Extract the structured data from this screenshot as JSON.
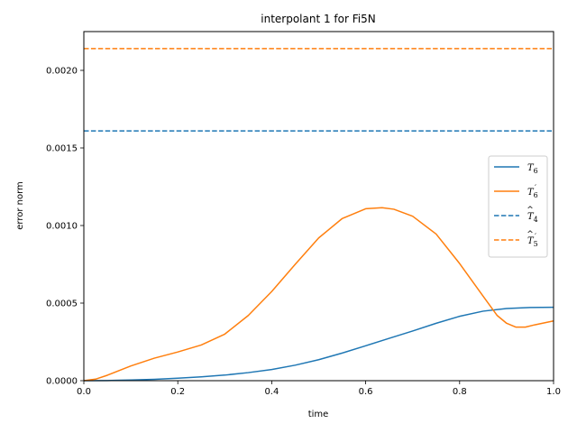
{
  "chart_data": {
    "type": "line",
    "title": "interpolant 1 for Fi5N",
    "xlabel": "time",
    "ylabel": "error norm",
    "xlim": [
      0.0,
      1.0
    ],
    "ylim": [
      0.0,
      0.00225
    ],
    "x_ticks": [
      0.0,
      0.2,
      0.4,
      0.6,
      0.8,
      1.0
    ],
    "x_tick_labels": [
      "0.0",
      "0.2",
      "0.4",
      "0.6",
      "0.8",
      "1.0"
    ],
    "y_ticks": [
      0.0,
      0.0005,
      0.001,
      0.0015,
      0.002
    ],
    "y_tick_labels": [
      "0.0000",
      "0.0005",
      "0.0010",
      "0.0015",
      "0.0020"
    ],
    "grid": false,
    "legend_position": "center-right",
    "series": [
      {
        "name": "T6",
        "legend_base": "T",
        "legend_sub": "6",
        "legend_hat": false,
        "legend_prime": false,
        "style": "solid",
        "color": "#1f77b4",
        "x": [
          0.0,
          0.05,
          0.1,
          0.15,
          0.2,
          0.25,
          0.3,
          0.35,
          0.4,
          0.45,
          0.5,
          0.55,
          0.6,
          0.65,
          0.7,
          0.75,
          0.8,
          0.85,
          0.9,
          0.95,
          1.0
        ],
        "y": [
          0.0,
          1e-06,
          4e-06,
          9e-06,
          1.6e-05,
          2.5e-05,
          3.6e-05,
          5.2e-05,
          7.2e-05,
          0.0001,
          0.000135,
          0.000178,
          0.000225,
          0.000273,
          0.00032,
          0.00037,
          0.000415,
          0.000448,
          0.000465,
          0.000472,
          0.000473
        ]
      },
      {
        "name": "T6'",
        "legend_base": "T",
        "legend_sub": "6",
        "legend_hat": false,
        "legend_prime": true,
        "style": "solid",
        "color": "#ff7f0e",
        "x": [
          0.0,
          0.025,
          0.05,
          0.1,
          0.15,
          0.2,
          0.25,
          0.3,
          0.35,
          0.4,
          0.45,
          0.5,
          0.55,
          0.6,
          0.635,
          0.66,
          0.7,
          0.75,
          0.8,
          0.85,
          0.88,
          0.9,
          0.92,
          0.94,
          0.96,
          1.0
        ],
        "y": [
          0.0,
          1e-05,
          3.5e-05,
          9.5e-05,
          0.000145,
          0.000185,
          0.00023,
          0.0003,
          0.00042,
          0.000575,
          0.00075,
          0.00092,
          0.001045,
          0.001108,
          0.001115,
          0.001105,
          0.00106,
          0.000945,
          0.000755,
          0.000545,
          0.00042,
          0.00037,
          0.000345,
          0.000345,
          0.00036,
          0.000385
        ]
      },
      {
        "name": "T^4",
        "legend_base": "T",
        "legend_sub": "4",
        "legend_hat": true,
        "legend_prime": false,
        "style": "dashed",
        "color": "#1f77b4",
        "x": [
          0.0,
          1.0
        ],
        "y": [
          0.00161,
          0.00161
        ]
      },
      {
        "name": "T^5'",
        "legend_base": "T",
        "legend_sub": "5",
        "legend_hat": true,
        "legend_prime": true,
        "style": "dashed",
        "color": "#ff7f0e",
        "x": [
          0.0,
          1.0
        ],
        "y": [
          0.00214,
          0.00214
        ]
      }
    ]
  }
}
